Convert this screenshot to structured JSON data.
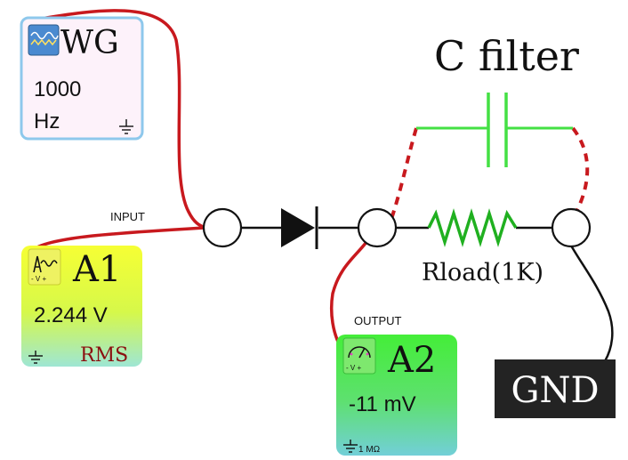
{
  "wave_generator": {
    "title": "WG",
    "value": "1000",
    "unit": "Hz"
  },
  "ammeter_a1": {
    "title": "A1",
    "value": "2.244 V",
    "mode": "RMS",
    "polarity": "- V +"
  },
  "ammeter_a2": {
    "title": "A2",
    "value": "-11 mV",
    "impedance": "1 MΩ",
    "polarity": "- V +"
  },
  "labels": {
    "input": "INPUT",
    "output": "OUTPUT",
    "c_filter": "C filter",
    "rload": "Rload(1K)",
    "gnd": "GND"
  },
  "colors": {
    "wire_red": "#c8191e",
    "wire_black": "#111111",
    "component_green": "#20c020",
    "capacitor_green": "#44e044",
    "rms_text": "#8b1010",
    "gnd_bg": "#222222",
    "wg_border": "#8ec8ec",
    "wg_bg": "#fdf2fa",
    "a1_top": "#f4ff3a",
    "a1_bottom": "#9ee8d0",
    "a2_top": "#44ee3a",
    "a2_bottom": "#6cd0d6"
  }
}
